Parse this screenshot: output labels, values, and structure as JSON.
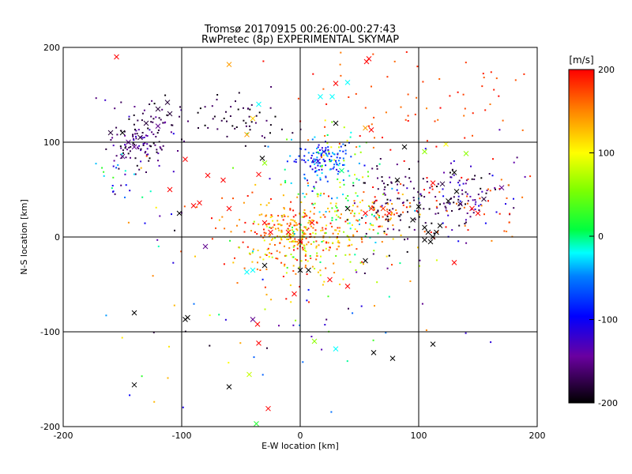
{
  "chart_data": {
    "type": "scatter",
    "title_line1": "Tromsø 20170915 00:26:00-00:27:43",
    "title_line2": "RwPretec (8p) EXPERIMENTAL SKYMAP",
    "xlabel": "E-W location [km]",
    "ylabel": "N-S location [km]",
    "xlim": [
      -200,
      200
    ],
    "ylim": [
      -200,
      200
    ],
    "xticks": [
      -200,
      -100,
      0,
      100,
      200
    ],
    "yticks": [
      -200,
      -100,
      0,
      100,
      200
    ],
    "grid": true,
    "colorbar": {
      "label": "[m/s]",
      "range": [
        -200,
        200
      ],
      "ticks": [
        200,
        100,
        0,
        -100,
        -200
      ],
      "colormap": "rainbow (black-purple-blue-cyan-green-yellow-red)"
    },
    "markers": {
      "small": "dot",
      "large": "x"
    },
    "crosses": [
      {
        "x": -155,
        "y": 190,
        "v": 200
      },
      {
        "x": -60,
        "y": 182,
        "v": 140
      },
      {
        "x": 58,
        "y": 188,
        "v": 200
      },
      {
        "x": 56,
        "y": 185,
        "v": 200
      },
      {
        "x": 30,
        "y": 162,
        "v": 200
      },
      {
        "x": 40,
        "y": 163,
        "v": -20
      },
      {
        "x": 17,
        "y": 148,
        "v": -20
      },
      {
        "x": 27,
        "y": 148,
        "v": -20
      },
      {
        "x": -35,
        "y": 140,
        "v": -20
      },
      {
        "x": -112,
        "y": 142,
        "v": -180
      },
      {
        "x": -120,
        "y": 135,
        "v": -180
      },
      {
        "x": -110,
        "y": 130,
        "v": -180
      },
      {
        "x": -130,
        "y": 120,
        "v": -180
      },
      {
        "x": -120,
        "y": 117,
        "v": -150
      },
      {
        "x": -150,
        "y": 110,
        "v": -200
      },
      {
        "x": -145,
        "y": 100,
        "v": -150
      },
      {
        "x": -140,
        "y": 95,
        "v": -150
      },
      {
        "x": -135,
        "y": 105,
        "v": -180
      },
      {
        "x": -150,
        "y": 85,
        "v": -150
      },
      {
        "x": -160,
        "y": 110,
        "v": -180
      },
      {
        "x": -45,
        "y": 108,
        "v": 140
      },
      {
        "x": -40,
        "y": 125,
        "v": 120
      },
      {
        "x": 30,
        "y": 120,
        "v": -200
      },
      {
        "x": 55,
        "y": 115,
        "v": 140
      },
      {
        "x": 60,
        "y": 113,
        "v": 200
      },
      {
        "x": -32,
        "y": 83,
        "v": -200
      },
      {
        "x": -30,
        "y": 78,
        "v": 60
      },
      {
        "x": -97,
        "y": 82,
        "v": 200
      },
      {
        "x": -78,
        "y": 65,
        "v": 200
      },
      {
        "x": -65,
        "y": 60,
        "v": 200
      },
      {
        "x": -110,
        "y": 50,
        "v": 200
      },
      {
        "x": -85,
        "y": 36,
        "v": 200
      },
      {
        "x": -60,
        "y": 30,
        "v": 200
      },
      {
        "x": -102,
        "y": 25,
        "v": -200
      },
      {
        "x": -90,
        "y": 33,
        "v": 200
      },
      {
        "x": -35,
        "y": 66,
        "v": 200
      },
      {
        "x": 15,
        "y": 80,
        "v": -120
      },
      {
        "x": 20,
        "y": 90,
        "v": -120
      },
      {
        "x": 35,
        "y": 70,
        "v": 0
      },
      {
        "x": 40,
        "y": 30,
        "v": -200
      },
      {
        "x": 55,
        "y": 25,
        "v": 200
      },
      {
        "x": 60,
        "y": 30,
        "v": 180
      },
      {
        "x": 70,
        "y": 30,
        "v": 180
      },
      {
        "x": 75,
        "y": 25,
        "v": 200
      },
      {
        "x": 88,
        "y": 95,
        "v": -200
      },
      {
        "x": 105,
        "y": 90,
        "v": 60
      },
      {
        "x": 95,
        "y": 18,
        "v": -200
      },
      {
        "x": 105,
        "y": 10,
        "v": -200
      },
      {
        "x": 108,
        "y": 5,
        "v": -200
      },
      {
        "x": 112,
        "y": 0,
        "v": -200
      },
      {
        "x": 115,
        "y": 5,
        "v": -200
      },
      {
        "x": 118,
        "y": 12,
        "v": -200
      },
      {
        "x": 125,
        "y": 38,
        "v": -200
      },
      {
        "x": 132,
        "y": 48,
        "v": -200
      },
      {
        "x": 135,
        "y": 35,
        "v": -180
      },
      {
        "x": 145,
        "y": 30,
        "v": 200
      },
      {
        "x": 150,
        "y": 25,
        "v": 200
      },
      {
        "x": 155,
        "y": 40,
        "v": -180
      },
      {
        "x": 170,
        "y": 52,
        "v": -150
      },
      {
        "x": 130,
        "y": 68,
        "v": -200
      },
      {
        "x": 140,
        "y": 88,
        "v": 60
      },
      {
        "x": 123,
        "y": 98,
        "v": 100
      },
      {
        "x": 112,
        "y": 57,
        "v": 200
      },
      {
        "x": 100,
        "y": 32,
        "v": -200
      },
      {
        "x": 120,
        "y": 56,
        "v": -180
      },
      {
        "x": 82,
        "y": 60,
        "v": -200
      },
      {
        "x": 130,
        "y": -27,
        "v": 200
      },
      {
        "x": 110,
        "y": -5,
        "v": -200
      },
      {
        "x": 105,
        "y": -3,
        "v": -200
      },
      {
        "x": 55,
        "y": -25,
        "v": -200
      },
      {
        "x": 25,
        "y": -45,
        "v": 200
      },
      {
        "x": 40,
        "y": -52,
        "v": 200
      },
      {
        "x": 7,
        "y": -35,
        "v": -200
      },
      {
        "x": 0,
        "y": -35,
        "v": -200
      },
      {
        "x": -5,
        "y": -60,
        "v": 200
      },
      {
        "x": -45,
        "y": -37,
        "v": -20
      },
      {
        "x": -40,
        "y": -35,
        "v": -20
      },
      {
        "x": -30,
        "y": -30,
        "v": -200
      },
      {
        "x": -80,
        "y": -10,
        "v": -150
      },
      {
        "x": -140,
        "y": -80,
        "v": -200
      },
      {
        "x": -97,
        "y": -87,
        "v": -200
      },
      {
        "x": -95,
        "y": -85,
        "v": -200
      },
      {
        "x": -40,
        "y": -87,
        "v": -150
      },
      {
        "x": -36,
        "y": -92,
        "v": 200
      },
      {
        "x": -35,
        "y": -112,
        "v": 200
      },
      {
        "x": 12,
        "y": -110,
        "v": 60
      },
      {
        "x": 30,
        "y": -118,
        "v": -20
      },
      {
        "x": 62,
        "y": -122,
        "v": -200
      },
      {
        "x": 78,
        "y": -128,
        "v": -200
      },
      {
        "x": 112,
        "y": -113,
        "v": -200
      },
      {
        "x": -140,
        "y": -156,
        "v": -200
      },
      {
        "x": -60,
        "y": -158,
        "v": -200
      },
      {
        "x": -43,
        "y": -145,
        "v": 80
      },
      {
        "x": -27,
        "y": -181,
        "v": 200
      },
      {
        "x": -37,
        "y": -197,
        "v": 20
      },
      {
        "x": 0,
        "y": -5,
        "v": 200
      },
      {
        "x": -10,
        "y": 5,
        "v": 200
      },
      {
        "x": -30,
        "y": 15,
        "v": 200
      },
      {
        "x": -25,
        "y": 5,
        "v": 200
      },
      {
        "x": 10,
        "y": 15,
        "v": 200
      }
    ],
    "clusters": [
      {
        "cx": -135,
        "cy": 100,
        "sx": 14,
        "sy": 14,
        "n": 110,
        "vmin": -200,
        "vmax": -120
      },
      {
        "cx": -155,
        "cy": 70,
        "sx": 10,
        "sy": 20,
        "n": 25,
        "vmin": -200,
        "vmax": 40
      },
      {
        "cx": -120,
        "cy": 135,
        "sx": 15,
        "sy": 10,
        "n": 15,
        "vmin": -200,
        "vmax": -120
      },
      {
        "cx": -50,
        "cy": 125,
        "sx": 25,
        "sy": 12,
        "n": 55,
        "vmin": -200,
        "vmax": -160
      },
      {
        "cx": 15,
        "cy": 80,
        "sx": 12,
        "sy": 12,
        "n": 120,
        "vmin": -130,
        "vmax": -20
      },
      {
        "cx": 30,
        "cy": 70,
        "sx": 20,
        "sy": 25,
        "n": 60,
        "vmin": -60,
        "vmax": 120
      },
      {
        "cx": 0,
        "cy": 0,
        "sx": 25,
        "sy": 18,
        "n": 220,
        "vmin": 60,
        "vmax": 200
      },
      {
        "cx": -20,
        "cy": 5,
        "sx": 30,
        "sy": 22,
        "n": 120,
        "vmin": 120,
        "vmax": 200
      },
      {
        "cx": 35,
        "cy": 15,
        "sx": 30,
        "sy": 25,
        "n": 120,
        "vmin": -40,
        "vmax": 200
      },
      {
        "cx": 80,
        "cy": 35,
        "sx": 20,
        "sy": 25,
        "n": 80,
        "vmin": -200,
        "vmax": -150
      },
      {
        "cx": 70,
        "cy": 25,
        "sx": 15,
        "sy": 10,
        "n": 40,
        "vmin": 120,
        "vmax": 200
      },
      {
        "cx": 135,
        "cy": 45,
        "sx": 25,
        "sy": 20,
        "n": 120,
        "vmin": -200,
        "vmax": -100
      },
      {
        "cx": 140,
        "cy": 30,
        "sx": 25,
        "sy": 20,
        "n": 40,
        "vmin": 150,
        "vmax": 200
      },
      {
        "cx": 40,
        "cy": 150,
        "sx": 40,
        "sy": 30,
        "n": 30,
        "vmin": 150,
        "vmax": 200
      },
      {
        "cx": 120,
        "cy": 130,
        "sx": 40,
        "sy": 30,
        "n": 35,
        "vmin": 150,
        "vmax": 200
      },
      {
        "cx": -120,
        "cy": 30,
        "sx": 30,
        "sy": 40,
        "n": 20,
        "vmin": -200,
        "vmax": 200
      },
      {
        "cx": 0,
        "cy": -60,
        "sx": 50,
        "sy": 40,
        "n": 30,
        "vmin": -200,
        "vmax": 200
      },
      {
        "cx": 40,
        "cy": -100,
        "sx": 60,
        "sy": 40,
        "n": 25,
        "vmin": -200,
        "vmax": 200
      },
      {
        "cx": -100,
        "cy": -120,
        "sx": 50,
        "sy": 50,
        "n": 15,
        "vmin": -200,
        "vmax": 200
      },
      {
        "cx": 160,
        "cy": 150,
        "sx": 30,
        "sy": 40,
        "n": 15,
        "vmin": 150,
        "vmax": 200
      }
    ]
  }
}
